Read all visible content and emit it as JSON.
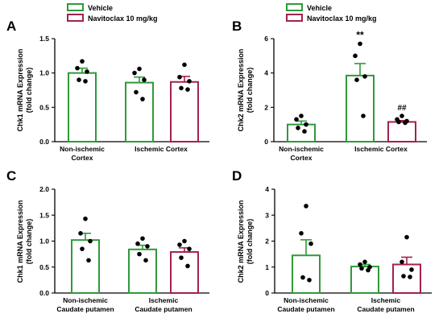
{
  "chart_data": [
    {
      "panel": "A",
      "type": "bar",
      "ylabel": "Chk1 mRNA Expression\n(fold change)",
      "ylim": [
        0,
        1.5
      ],
      "yticks": [
        "0.0",
        "0.5",
        "1.0",
        "1.5"
      ],
      "categories": [
        "Non-ischemic\nCortex",
        "Ischemic Cortex"
      ],
      "legend": [
        {
          "name": "Vehicle",
          "color": "#2e9a3a"
        },
        {
          "name": "Navitoclax 10 mg/kg",
          "color": "#a3214e"
        }
      ],
      "bars": [
        {
          "category": 0,
          "series": "Vehicle",
          "value": 1.0,
          "sem": 0.07,
          "points": [
            1.17,
            1.07,
            1.02,
            0.9,
            0.88
          ],
          "annotation": ""
        },
        {
          "category": 1,
          "series": "Vehicle",
          "value": 0.86,
          "sem": 0.08,
          "points": [
            1.06,
            1.0,
            0.9,
            0.72,
            0.62
          ],
          "annotation": ""
        },
        {
          "category": 1,
          "series": "Navitoclax 10 mg/kg",
          "value": 0.87,
          "sem": 0.08,
          "points": [
            1.12,
            0.94,
            0.88,
            0.78,
            0.76
          ],
          "annotation": ""
        }
      ]
    },
    {
      "panel": "B",
      "type": "bar",
      "ylabel": "Chk2 mRNA Expression\n(fold change)",
      "ylim": [
        0,
        6
      ],
      "yticks": [
        "0",
        "2",
        "4",
        "6"
      ],
      "categories": [
        "Non-ischemic\nCortex",
        "Ischemic Cortex"
      ],
      "legend": [
        {
          "name": "Vehicle",
          "color": "#2e9a3a"
        },
        {
          "name": "Navitoclax 10 mg/kg",
          "color": "#a3214e"
        }
      ],
      "bars": [
        {
          "category": 0,
          "series": "Vehicle",
          "value": 1.0,
          "sem": 0.2,
          "points": [
            1.5,
            1.3,
            1.0,
            0.8,
            0.6
          ],
          "annotation": ""
        },
        {
          "category": 1,
          "series": "Vehicle",
          "value": 3.85,
          "sem": 0.7,
          "points": [
            5.7,
            5.0,
            3.8,
            3.6,
            1.5
          ],
          "annotation": "**"
        },
        {
          "category": 1,
          "series": "Navitoclax 10 mg/kg",
          "value": 1.15,
          "sem": 0.08,
          "points": [
            1.5,
            1.3,
            1.2,
            1.15,
            1.1
          ],
          "annotation": "##"
        }
      ]
    },
    {
      "panel": "C",
      "type": "bar",
      "ylabel": "Chk1 mRNA Expression\n(fold change)",
      "ylim": [
        0,
        2.0
      ],
      "yticks": [
        "0.0",
        "0.5",
        "1.0",
        "1.5",
        "2.0"
      ],
      "categories": [
        "Non-ischemic\nCaudate putamen",
        "Ischemic\nCaudate putamen"
      ],
      "legend": [],
      "bars": [
        {
          "category": 0,
          "series": "Vehicle",
          "value": 1.02,
          "sem": 0.13,
          "points": [
            1.43,
            1.15,
            1.0,
            0.85,
            0.63
          ],
          "annotation": ""
        },
        {
          "category": 1,
          "series": "Vehicle",
          "value": 0.84,
          "sem": 0.08,
          "points": [
            1.05,
            0.95,
            0.9,
            0.75,
            0.63
          ],
          "annotation": ""
        },
        {
          "category": 1,
          "series": "Navitoclax 10 mg/kg",
          "value": 0.79,
          "sem": 0.08,
          "points": [
            1.0,
            0.93,
            0.85,
            0.68,
            0.52
          ],
          "annotation": ""
        }
      ]
    },
    {
      "panel": "D",
      "type": "bar",
      "ylabel": "Chk2 mRNA Expression\n(fold change)",
      "ylim": [
        0,
        4
      ],
      "yticks": [
        "0",
        "1",
        "2",
        "3",
        "4"
      ],
      "categories": [
        "Non-ischemic\nCaudate putamen",
        "Ischemic\nCaudate putamen"
      ],
      "legend": [],
      "bars": [
        {
          "category": 0,
          "series": "Vehicle",
          "value": 1.45,
          "sem": 0.6,
          "points": [
            3.35,
            2.3,
            1.9,
            0.6,
            0.5
          ],
          "annotation": ""
        },
        {
          "category": 1,
          "series": "Vehicle",
          "value": 1.02,
          "sem": 0.08,
          "points": [
            1.2,
            1.1,
            1.0,
            0.95,
            0.88
          ],
          "annotation": ""
        },
        {
          "category": 1,
          "series": "Navitoclax 10 mg/kg",
          "value": 1.1,
          "sem": 0.28,
          "points": [
            2.15,
            1.2,
            0.9,
            0.65,
            0.62
          ],
          "annotation": ""
        }
      ]
    }
  ]
}
